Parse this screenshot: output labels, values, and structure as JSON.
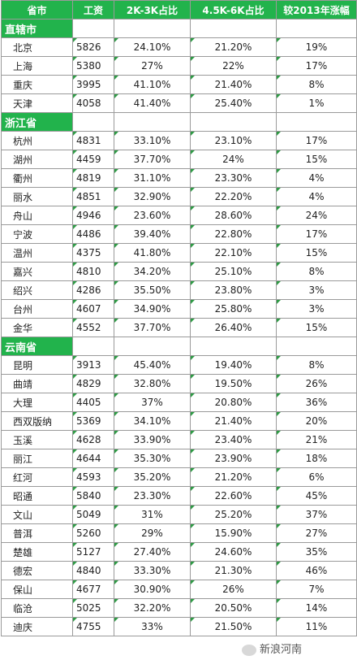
{
  "headers": [
    "省市",
    "工资",
    "2K-3K占比",
    "4.5K-6K占比",
    "较2013年涨幅"
  ],
  "groups": [
    {
      "name": "直辖市",
      "rows": [
        [
          "北京",
          "5826",
          "24.10%",
          "21.20%",
          "19%"
        ],
        [
          "上海",
          "5380",
          "27%",
          "22%",
          "17%"
        ],
        [
          "重庆",
          "3995",
          "41.10%",
          "21.40%",
          "8%"
        ],
        [
          "天津",
          "4058",
          "41.40%",
          "25.40%",
          "1%"
        ]
      ]
    },
    {
      "name": "浙江省",
      "rows": [
        [
          "杭州",
          "4831",
          "33.10%",
          "23.10%",
          "17%"
        ],
        [
          "湖州",
          "4459",
          "37.70%",
          "24%",
          "15%"
        ],
        [
          "衢州",
          "4819",
          "31.10%",
          "23.30%",
          "4%"
        ],
        [
          "丽水",
          "4851",
          "32.90%",
          "22.20%",
          "4%"
        ],
        [
          "舟山",
          "4946",
          "23.60%",
          "28.60%",
          "24%"
        ],
        [
          "宁波",
          "4486",
          "39.40%",
          "22.80%",
          "17%"
        ],
        [
          "温州",
          "4375",
          "41.80%",
          "22.10%",
          "15%"
        ],
        [
          "嘉兴",
          "4810",
          "34.20%",
          "25.10%",
          "8%"
        ],
        [
          "绍兴",
          "4286",
          "35.50%",
          "23.80%",
          "3%"
        ],
        [
          "台州",
          "4607",
          "34.90%",
          "25.80%",
          "3%"
        ],
        [
          "金华",
          "4552",
          "37.70%",
          "26.40%",
          "15%"
        ]
      ]
    },
    {
      "name": "云南省",
      "rows": [
        [
          "昆明",
          "3913",
          "45.40%",
          "19.40%",
          "8%"
        ],
        [
          "曲靖",
          "4829",
          "32.80%",
          "19.50%",
          "26%"
        ],
        [
          "大理",
          "4405",
          "37%",
          "20.80%",
          "36%"
        ],
        [
          "西双版纳",
          "5369",
          "34.10%",
          "21.40%",
          "20%"
        ],
        [
          "玉溪",
          "4628",
          "33.90%",
          "23.40%",
          "21%"
        ],
        [
          "丽江",
          "4644",
          "35.30%",
          "23.90%",
          "18%"
        ],
        [
          "红河",
          "4593",
          "35.20%",
          "21.20%",
          "6%"
        ],
        [
          "昭通",
          "5840",
          "23.30%",
          "22.60%",
          "45%"
        ],
        [
          "文山",
          "5049",
          "31%",
          "25.20%",
          "37%"
        ],
        [
          "普洱",
          "5260",
          "29%",
          "15.90%",
          "27%"
        ],
        [
          "楚雄",
          "5127",
          "27.40%",
          "24.60%",
          "35%"
        ],
        [
          "德宏",
          "4840",
          "33.30%",
          "21.30%",
          "46%"
        ],
        [
          "保山",
          "4677",
          "30.90%",
          "26%",
          "7%"
        ],
        [
          "临沧",
          "5025",
          "32.20%",
          "20.50%",
          "14%"
        ],
        [
          "迪庆",
          "4755",
          "33%",
          "21.50%",
          "11%"
        ]
      ]
    }
  ],
  "watermark": "新浪河南"
}
